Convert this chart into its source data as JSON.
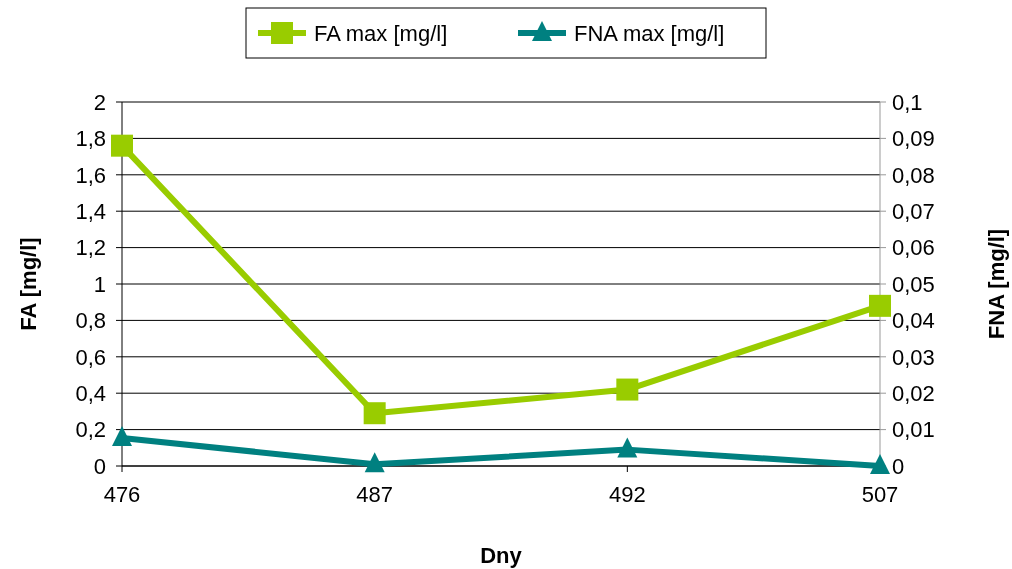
{
  "chart_data": {
    "type": "line",
    "xlabel": "Dny",
    "ylabel": "FA [mg/l]",
    "y2label": "FNA [mg/l]",
    "categories": [
      "476",
      "487",
      "492",
      "507"
    ],
    "series": [
      {
        "name": "FA max [mg/l]",
        "color": "#99cc00",
        "marker": "square",
        "values": [
          1.76,
          0.29,
          0.42,
          0.88
        ]
      },
      {
        "name": "FNA max [mg/l]",
        "color": "#008080",
        "marker": "triangle",
        "axis": "y2",
        "values": [
          0.0077,
          0.0005,
          0.0045,
          0
        ]
      }
    ],
    "ylim": [
      0,
      2
    ],
    "yticks": [
      0,
      {
        "value": 0.2,
        "label": "0,2"
      },
      {
        "value": 0.4,
        "label": "0,4"
      },
      {
        "value": 0.6,
        "label": "0,6"
      },
      {
        "value": 0.8,
        "label": "0,8"
      },
      1,
      {
        "value": 1.2,
        "label": "1,2"
      },
      {
        "value": 1.4,
        "label": "1,4"
      },
      {
        "value": 1.6,
        "label": "1,6"
      },
      {
        "value": 1.8,
        "label": "1,8"
      },
      2
    ],
    "y2lim": [
      0,
      0.1
    ],
    "y2ticks": [
      0,
      {
        "value": 0.01,
        "label": "0,01"
      },
      {
        "value": 0.02,
        "label": "0,02"
      },
      {
        "value": 0.03,
        "label": "0,03"
      },
      {
        "value": 0.04,
        "label": "0,04"
      },
      {
        "value": 0.05,
        "label": "0,05"
      },
      {
        "value": 0.06,
        "label": "0,06"
      },
      {
        "value": 0.07,
        "label": "0,07"
      },
      {
        "value": 0.08,
        "label": "0,08"
      },
      {
        "value": 0.09,
        "label": "0,09"
      },
      {
        "value": 0.1,
        "label": "0,1"
      }
    ],
    "grid": "y",
    "legend": "top",
    "line_style": "solid"
  }
}
